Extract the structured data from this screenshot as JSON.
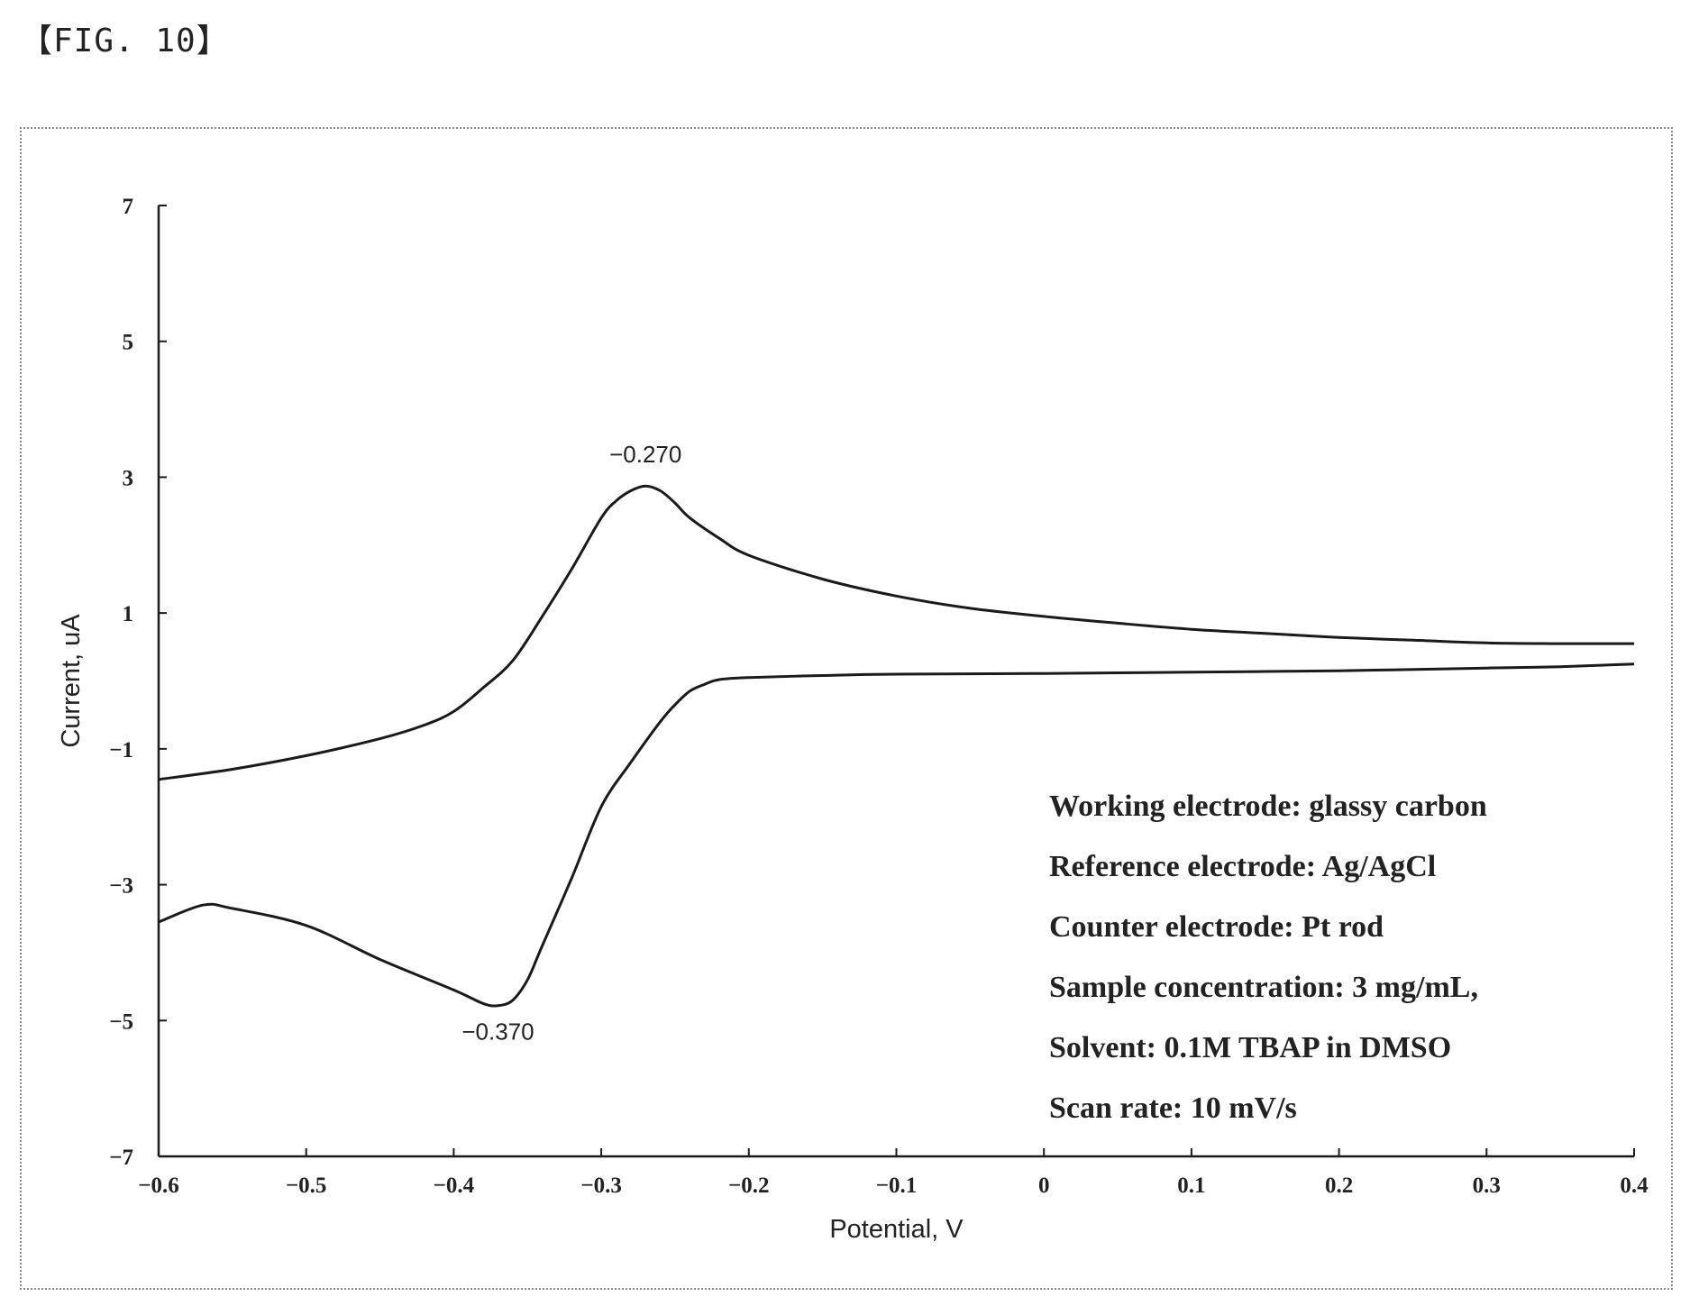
{
  "figure_label": "【FIG. 10】",
  "chart_data": {
    "type": "line",
    "title": "",
    "xlabel": "Potential, V",
    "ylabel": "Current, uA",
    "xlim": [
      -0.6,
      0.4
    ],
    "ylim": [
      -7,
      7
    ],
    "xticks": [
      "-0.6",
      "-0.5",
      "-0.4",
      "-0.3",
      "-0.2",
      "-0.1",
      "0",
      "0.1",
      "0.2",
      "0.3",
      "0.4"
    ],
    "yticks": [
      "7",
      "5",
      "3",
      "1",
      "-1",
      "-3",
      "-5",
      "-7"
    ],
    "grid": false,
    "color": "#1a1a1a",
    "series": [
      {
        "x": [
          -0.6,
          -0.55,
          -0.5,
          -0.45,
          -0.42,
          -0.4,
          -0.38,
          -0.36,
          -0.34,
          -0.32,
          -0.3,
          -0.29,
          -0.28,
          -0.27,
          -0.26,
          -0.25,
          -0.24,
          -0.22,
          -0.2,
          -0.15,
          -0.1,
          -0.05,
          0.0,
          0.05,
          0.1,
          0.15,
          0.2,
          0.25,
          0.3,
          0.35,
          0.4
        ],
        "y": [
          -1.45,
          -1.3,
          -1.1,
          -0.85,
          -0.65,
          -0.45,
          -0.1,
          0.3,
          0.95,
          1.65,
          2.4,
          2.65,
          2.8,
          2.87,
          2.8,
          2.62,
          2.4,
          2.1,
          1.85,
          1.5,
          1.25,
          1.07,
          0.95,
          0.85,
          0.76,
          0.7,
          0.64,
          0.6,
          0.56,
          0.55,
          0.55
        ]
      },
      {
        "x": [
          0.4,
          0.35,
          0.3,
          0.2,
          0.1,
          0.0,
          -0.1,
          -0.15,
          -0.2,
          -0.22,
          -0.23,
          -0.24,
          -0.25,
          -0.26,
          -0.28,
          -0.3,
          -0.32,
          -0.34,
          -0.35,
          -0.36,
          -0.37,
          -0.38,
          -0.4,
          -0.45,
          -0.5,
          -0.55,
          -0.57,
          -0.6
        ],
        "y": [
          0.25,
          0.21,
          0.19,
          0.15,
          0.13,
          0.11,
          0.1,
          0.08,
          0.05,
          0.02,
          -0.05,
          -0.15,
          -0.35,
          -0.6,
          -1.2,
          -1.85,
          -2.9,
          -3.9,
          -4.4,
          -4.7,
          -4.78,
          -4.75,
          -4.55,
          -4.1,
          -3.6,
          -3.35,
          -3.3,
          -3.55
        ]
      }
    ],
    "annotations": [
      {
        "text": "−0.270",
        "x": -0.27,
        "y": 2.87,
        "position": "above"
      },
      {
        "text": "−0.370",
        "x": -0.37,
        "y": -4.78,
        "position": "below"
      }
    ],
    "notes": [
      "Working electrode: glassy carbon",
      "Reference electrode: Ag/AgCl",
      "Counter electrode: Pt rod",
      "Sample concentration: 3 mg/mL,",
      "Solvent: 0.1M TBAP in DMSO",
      "Scan rate: 10 mV/s"
    ]
  }
}
